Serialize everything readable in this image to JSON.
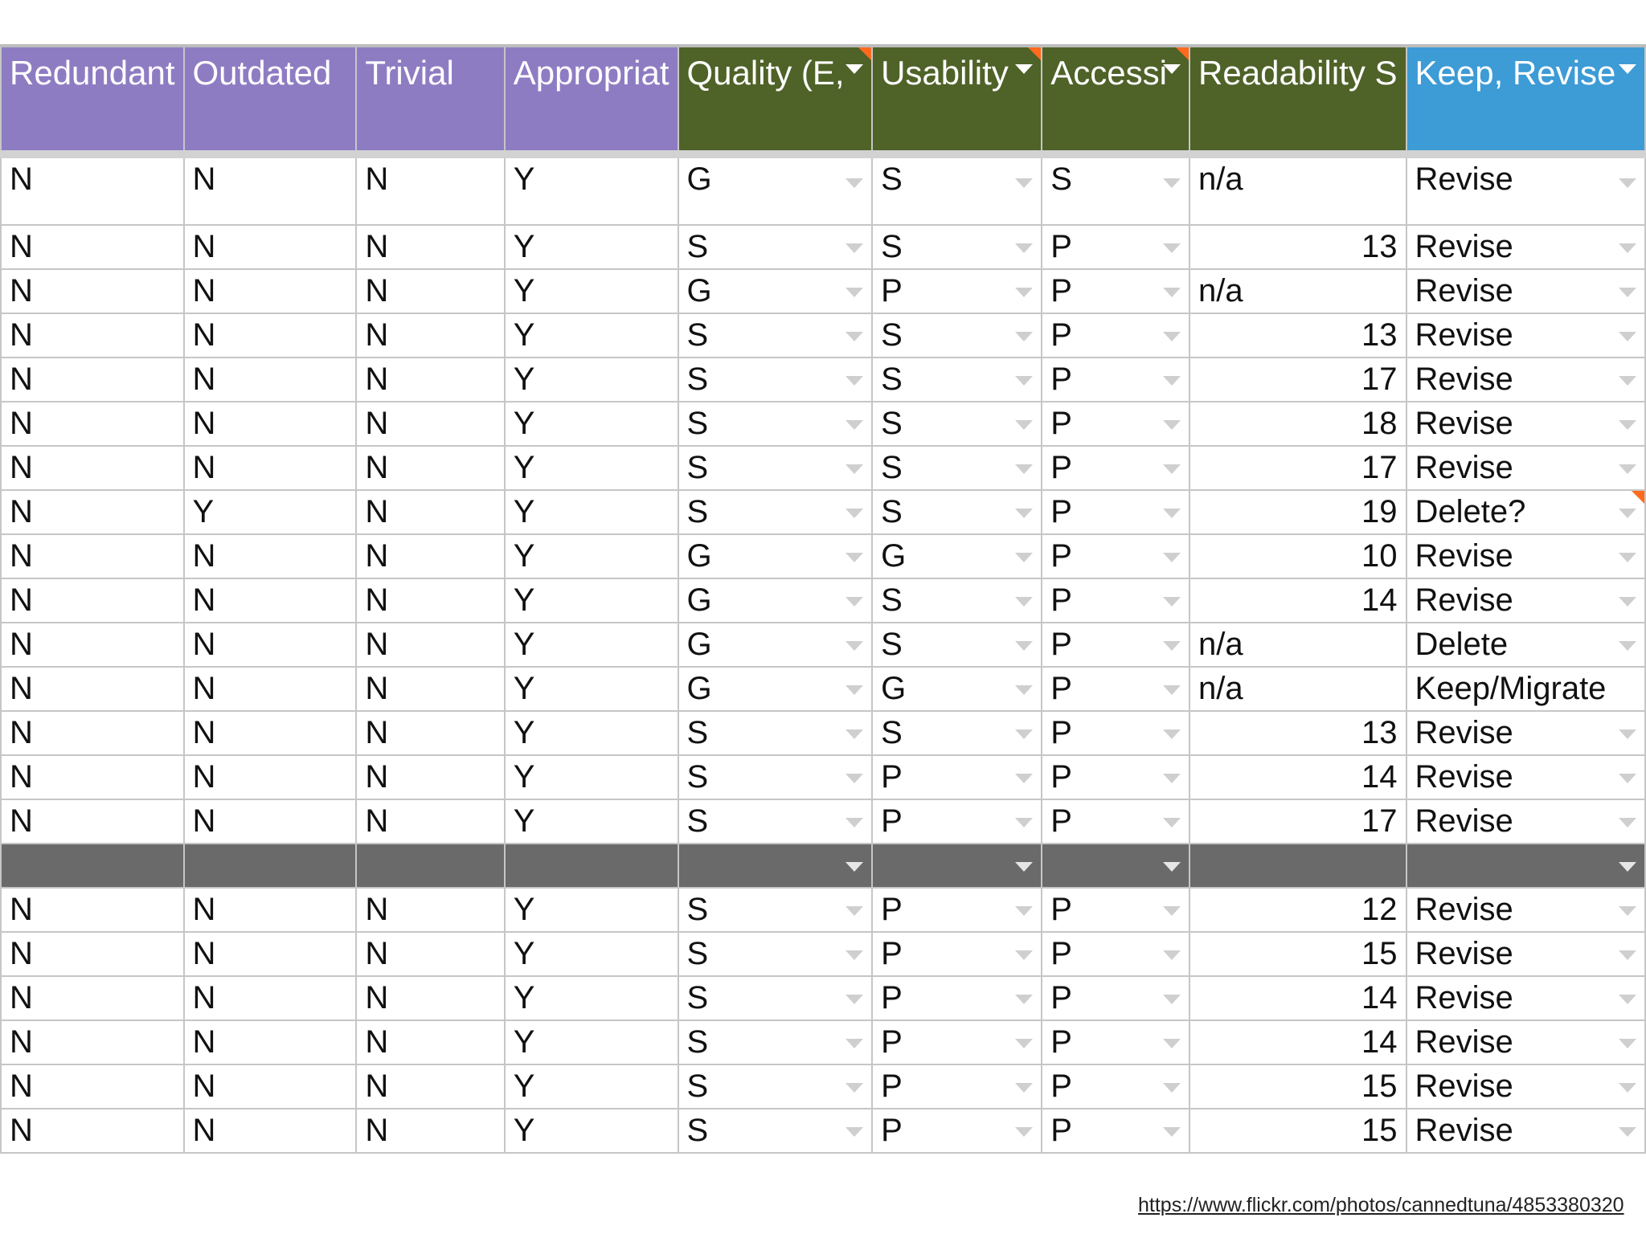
{
  "headers": [
    {
      "label": "Redundant",
      "dropdown": false,
      "flag": false
    },
    {
      "label": "Outdated",
      "dropdown": false,
      "flag": false
    },
    {
      "label": "Trivial",
      "dropdown": false,
      "flag": false
    },
    {
      "label": "Appropriat",
      "dropdown": false,
      "flag": false
    },
    {
      "label": "Quality (E,",
      "dropdown": true,
      "flag": true
    },
    {
      "label": "Usability",
      "dropdown": true,
      "flag": true
    },
    {
      "label": "Accessi",
      "dropdown": true,
      "flag": true
    },
    {
      "label": "Readability S",
      "dropdown": false,
      "flag": false
    },
    {
      "label": "Keep, Revise",
      "dropdown": true,
      "flag": false
    }
  ],
  "header_colors": {
    "rot": "#8e7cc3",
    "ratings": "#4f6228",
    "decision": "#3d9bd6"
  },
  "rows": [
    [
      "N",
      "N",
      "N",
      "Y",
      "G",
      "S",
      "S",
      "n/a",
      "Revise"
    ],
    [
      "N",
      "N",
      "N",
      "Y",
      "S",
      "S",
      "P",
      "13",
      "Revise"
    ],
    [
      "N",
      "N",
      "N",
      "Y",
      "G",
      "P",
      "P",
      "n/a",
      "Revise"
    ],
    [
      "N",
      "N",
      "N",
      "Y",
      "S",
      "S",
      "P",
      "13",
      "Revise"
    ],
    [
      "N",
      "N",
      "N",
      "Y",
      "S",
      "S",
      "P",
      "17",
      "Revise"
    ],
    [
      "N",
      "N",
      "N",
      "Y",
      "S",
      "S",
      "P",
      "18",
      "Revise"
    ],
    [
      "N",
      "N",
      "N",
      "Y",
      "S",
      "S",
      "P",
      "17",
      "Revise"
    ],
    [
      "N",
      "Y",
      "N",
      "Y",
      "S",
      "S",
      "P",
      "19",
      "Delete?"
    ],
    [
      "N",
      "N",
      "N",
      "Y",
      "G",
      "G",
      "P",
      "10",
      "Revise"
    ],
    [
      "N",
      "N",
      "N",
      "Y",
      "G",
      "S",
      "P",
      "14",
      "Revise"
    ],
    [
      "N",
      "N",
      "N",
      "Y",
      "G",
      "S",
      "P",
      "n/a",
      "Delete"
    ],
    [
      "N",
      "N",
      "N",
      "Y",
      "G",
      "G",
      "P",
      "n/a",
      "Keep/Migrate"
    ],
    [
      "N",
      "N",
      "N",
      "Y",
      "S",
      "S",
      "P",
      "13",
      "Revise"
    ],
    [
      "N",
      "N",
      "N",
      "Y",
      "S",
      "P",
      "P",
      "14",
      "Revise"
    ],
    [
      "N",
      "N",
      "N",
      "Y",
      "S",
      "P",
      "P",
      "17",
      "Revise"
    ],
    null,
    [
      "N",
      "N",
      "N",
      "Y",
      "S",
      "P",
      "P",
      "12",
      "Revise"
    ],
    [
      "N",
      "N",
      "N",
      "Y",
      "S",
      "P",
      "P",
      "15",
      "Revise"
    ],
    [
      "N",
      "N",
      "N",
      "Y",
      "S",
      "P",
      "P",
      "14",
      "Revise"
    ],
    [
      "N",
      "N",
      "N",
      "Y",
      "S",
      "P",
      "P",
      "14",
      "Revise"
    ],
    [
      "N",
      "N",
      "N",
      "Y",
      "S",
      "P",
      "P",
      "15",
      "Revise"
    ],
    [
      "N",
      "N",
      "N",
      "Y",
      "S",
      "P",
      "P",
      "15",
      "Revise"
    ]
  ],
  "flagged_cells": [
    {
      "row": 7,
      "col": 8
    }
  ],
  "credit": "https://www.flickr.com/photos/cannedtuna/4853380320"
}
